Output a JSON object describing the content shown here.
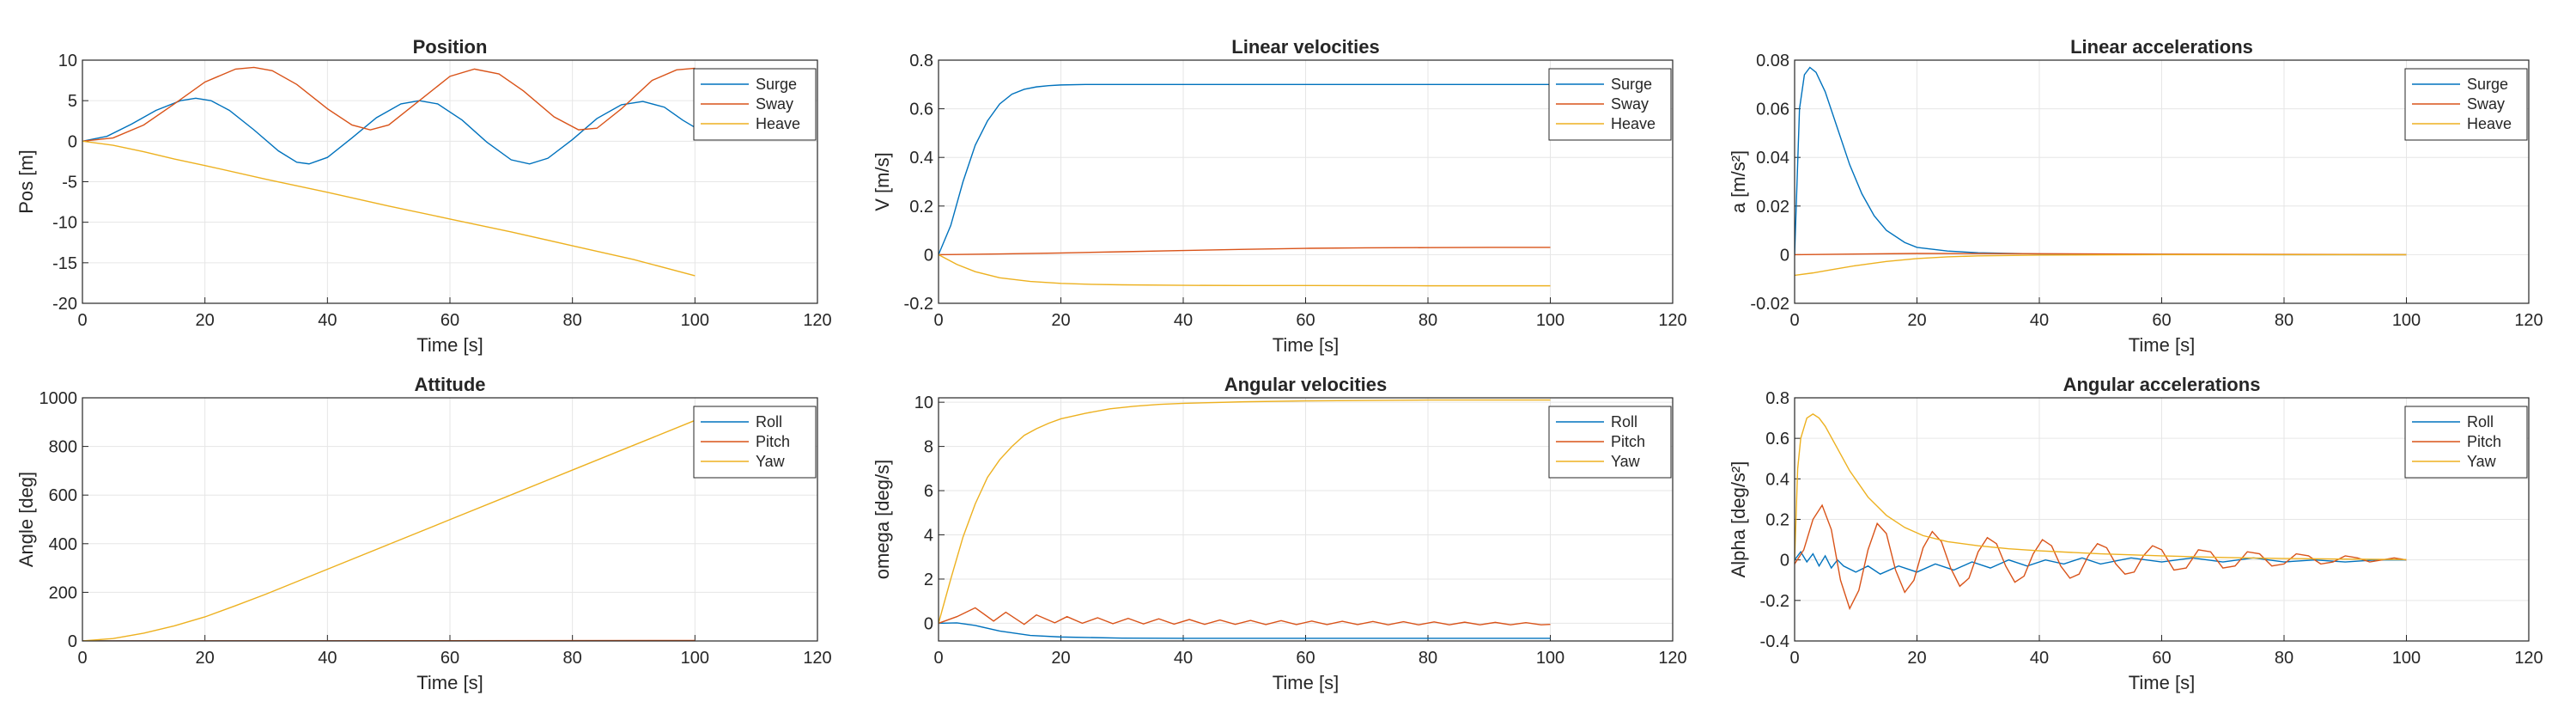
{
  "figure": {
    "grid": true
  },
  "chart_data": [
    {
      "type": "line",
      "title": "Position",
      "xlabel": "Time [s]",
      "ylabel": "Pos [m]",
      "xlim": [
        0,
        120
      ],
      "ylim": [
        -20,
        10
      ],
      "xticks": [
        "0",
        "20",
        "40",
        "60",
        "80",
        "100",
        "120"
      ],
      "yticks": [
        "10",
        "5",
        "0",
        "-5",
        "-10",
        "-15",
        "-20"
      ],
      "legend": "top-right",
      "series": [
        {
          "name": "Surge",
          "color": "#0072BD",
          "x": [
            0,
            4,
            8,
            12,
            16,
            18.5,
            21,
            24,
            28,
            32,
            35,
            37,
            40,
            44,
            48,
            52,
            55,
            58,
            62,
            66,
            70,
            73,
            76,
            80,
            84,
            88,
            91.5,
            95,
            98,
            100
          ],
          "y": [
            0,
            0.6,
            2.1,
            3.8,
            5.0,
            5.3,
            5.0,
            3.8,
            1.4,
            -1.2,
            -2.6,
            -2.8,
            -2.0,
            0.4,
            2.9,
            4.6,
            5.0,
            4.6,
            2.6,
            -0.1,
            -2.3,
            -2.8,
            -2.1,
            0.2,
            2.8,
            4.5,
            4.9,
            4.2,
            2.6,
            1.7
          ]
        },
        {
          "name": "Sway",
          "color": "#D95319",
          "x": [
            0,
            5,
            10,
            15,
            20,
            25,
            28,
            31,
            35,
            40,
            44,
            47,
            50,
            55,
            60,
            64,
            68,
            72,
            77,
            81,
            84,
            88,
            93,
            97,
            100
          ],
          "y": [
            0,
            0.4,
            2.0,
            4.6,
            7.3,
            8.9,
            9.1,
            8.7,
            7.0,
            4.0,
            2.0,
            1.4,
            2.0,
            5.0,
            8.0,
            8.9,
            8.3,
            6.2,
            3.0,
            1.4,
            1.6,
            4.0,
            7.5,
            8.8,
            9.0
          ]
        },
        {
          "name": "Heave",
          "color": "#EDB120",
          "x": [
            0,
            5,
            10,
            15,
            20,
            30,
            40,
            50,
            60,
            70,
            80,
            90,
            100
          ],
          "y": [
            0,
            -0.5,
            -1.3,
            -2.2,
            -3.0,
            -4.7,
            -6.3,
            -8.0,
            -9.6,
            -11.2,
            -12.9,
            -14.6,
            -16.6
          ]
        }
      ]
    },
    {
      "type": "line",
      "title": "Linear velocities",
      "xlabel": "Time [s]",
      "ylabel": "V [m/s]",
      "xlim": [
        0,
        120
      ],
      "ylim": [
        -0.2,
        0.8
      ],
      "xticks": [
        "0",
        "20",
        "40",
        "60",
        "80",
        "100",
        "120"
      ],
      "yticks": [
        "0.8",
        "0.6",
        "0.4",
        "0.2",
        "0",
        "-0.2"
      ],
      "legend": "top-right",
      "series": [
        {
          "name": "Surge",
          "color": "#0072BD",
          "x": [
            0,
            2,
            4,
            6,
            8,
            10,
            12,
            14,
            16,
            18,
            20,
            24,
            28,
            35,
            45,
            60,
            80,
            100
          ],
          "y": [
            0,
            0.12,
            0.3,
            0.45,
            0.55,
            0.62,
            0.66,
            0.68,
            0.69,
            0.695,
            0.698,
            0.7,
            0.7,
            0.7,
            0.7,
            0.7,
            0.7,
            0.7
          ]
        },
        {
          "name": "Sway",
          "color": "#D95319",
          "x": [
            0,
            10,
            20,
            30,
            40,
            50,
            60,
            70,
            80,
            90,
            100
          ],
          "y": [
            0,
            0.003,
            0.007,
            0.012,
            0.017,
            0.022,
            0.026,
            0.028,
            0.029,
            0.03,
            0.03
          ]
        },
        {
          "name": "Heave",
          "color": "#EDB120",
          "x": [
            0,
            3,
            6,
            10,
            15,
            20,
            25,
            30,
            40,
            50,
            60,
            80,
            100
          ],
          "y": [
            0,
            -0.04,
            -0.07,
            -0.095,
            -0.11,
            -0.118,
            -0.122,
            -0.124,
            -0.126,
            -0.127,
            -0.127,
            -0.128,
            -0.128
          ]
        }
      ]
    },
    {
      "type": "line",
      "title": "Linear accelerations",
      "xlabel": "Time [s]",
      "ylabel": "a [m/s²]",
      "xlim": [
        0,
        120
      ],
      "ylim": [
        -0.02,
        0.08
      ],
      "xticks": [
        "0",
        "20",
        "40",
        "60",
        "80",
        "100",
        "120"
      ],
      "yticks": [
        "0.08",
        "0.06",
        "0.04",
        "0.02",
        "0",
        "-0.02"
      ],
      "legend": "top-right",
      "series": [
        {
          "name": "Surge",
          "color": "#0072BD",
          "x": [
            0,
            0.8,
            1.6,
            2.5,
            3.5,
            5,
            7,
            9,
            11,
            13,
            15,
            18,
            20,
            25,
            30,
            40,
            60,
            80,
            100
          ],
          "y": [
            0.0,
            0.06,
            0.074,
            0.077,
            0.075,
            0.067,
            0.052,
            0.037,
            0.025,
            0.016,
            0.01,
            0.005,
            0.003,
            0.0015,
            0.0008,
            0.0003,
            0.0001,
            0,
            0
          ]
        },
        {
          "name": "Sway",
          "color": "#D95319",
          "x": [
            0,
            20,
            40,
            60,
            80,
            100
          ],
          "y": [
            0,
            0.0005,
            0.0004,
            0.0002,
            0.0001,
            0
          ]
        },
        {
          "name": "Heave",
          "color": "#EDB120",
          "x": [
            0,
            3,
            6,
            10,
            15,
            20,
            25,
            30,
            40,
            60,
            80,
            100
          ],
          "y": [
            -0.0085,
            -0.0075,
            -0.0062,
            -0.0045,
            -0.0028,
            -0.0016,
            -0.0009,
            -0.0005,
            -0.0002,
            0,
            0,
            0
          ]
        }
      ]
    },
    {
      "type": "line",
      "title": "Attitude",
      "xlabel": "Time [s]",
      "ylabel": "Angle [deg]",
      "xlim": [
        0,
        120
      ],
      "ylim": [
        0,
        1000
      ],
      "xticks": [
        "0",
        "20",
        "40",
        "60",
        "80",
        "100",
        "120"
      ],
      "yticks": [
        "1000",
        "800",
        "600",
        "400",
        "200",
        "0"
      ],
      "legend": "top-right",
      "series": [
        {
          "name": "Roll",
          "color": "#0072BD",
          "x": [
            0,
            50,
            100
          ],
          "y": [
            0,
            0,
            0
          ]
        },
        {
          "name": "Pitch",
          "color": "#D95319",
          "x": [
            0,
            50,
            100
          ],
          "y": [
            0,
            1,
            2
          ]
        },
        {
          "name": "Yaw",
          "color": "#EDB120",
          "x": [
            0,
            5,
            10,
            15,
            20,
            25,
            30,
            40,
            50,
            60,
            70,
            80,
            90,
            100
          ],
          "y": [
            0,
            10,
            32,
            62,
            99,
            145,
            193,
            295,
            397,
            499,
            601,
            703,
            805,
            907
          ]
        }
      ]
    },
    {
      "type": "line",
      "title": "Angular velocities",
      "xlabel": "Time [s]",
      "ylabel": "omega [deg/s]",
      "xlim": [
        0,
        120
      ],
      "ylim": [
        -0.8,
        10.2
      ],
      "xticks": [
        "0",
        "20",
        "40",
        "60",
        "80",
        "100",
        "120"
      ],
      "yticks": [
        "10",
        "8",
        "6",
        "4",
        "2",
        "0"
      ],
      "legend": "top-right",
      "series": [
        {
          "name": "Roll",
          "color": "#0072BD",
          "x": [
            0,
            3,
            6,
            10,
            15,
            20,
            30,
            40,
            50,
            60,
            80,
            100
          ],
          "y": [
            0,
            0.02,
            -0.1,
            -0.35,
            -0.55,
            -0.62,
            -0.67,
            -0.68,
            -0.68,
            -0.68,
            -0.68,
            -0.68
          ]
        },
        {
          "name": "Pitch",
          "color": "#D95319",
          "x": [
            0,
            3,
            6,
            9,
            11,
            14,
            16,
            19,
            21,
            23.5,
            26,
            28.5,
            31,
            33.5,
            36,
            38.5,
            41,
            43.5,
            46,
            48.5,
            51,
            53.5,
            56,
            58.5,
            61,
            63.5,
            66,
            68.5,
            71,
            73.5,
            76,
            78.5,
            81,
            83.5,
            86,
            88.5,
            91,
            93.5,
            96,
            98.5,
            100
          ],
          "y": [
            0,
            0.3,
            0.7,
            0.1,
            0.5,
            -0.05,
            0.38,
            0.02,
            0.3,
            0.0,
            0.25,
            -0.02,
            0.22,
            -0.03,
            0.2,
            -0.04,
            0.17,
            -0.05,
            0.15,
            -0.05,
            0.13,
            -0.06,
            0.12,
            -0.06,
            0.1,
            -0.06,
            0.09,
            -0.06,
            0.08,
            -0.07,
            0.07,
            -0.07,
            0.06,
            -0.07,
            0.05,
            -0.07,
            0.04,
            -0.07,
            0.03,
            -0.07,
            -0.05
          ]
        },
        {
          "name": "Yaw",
          "color": "#EDB120",
          "x": [
            0,
            2,
            4,
            6,
            8,
            10,
            12,
            14,
            16,
            18,
            20,
            24,
            28,
            32,
            36,
            40,
            50,
            60,
            70,
            80,
            90,
            100
          ],
          "y": [
            0,
            2.0,
            3.9,
            5.4,
            6.6,
            7.4,
            8.0,
            8.5,
            8.8,
            9.05,
            9.25,
            9.5,
            9.7,
            9.82,
            9.9,
            9.95,
            10.02,
            10.06,
            10.08,
            10.1,
            10.1,
            10.1
          ]
        }
      ]
    },
    {
      "type": "line",
      "title": "Angular accelerations",
      "xlabel": "Time [s]",
      "ylabel": "Alpha [deg/s²]",
      "xlim": [
        0,
        120
      ],
      "ylim": [
        -0.4,
        0.8
      ],
      "xticks": [
        "0",
        "20",
        "40",
        "60",
        "80",
        "100",
        "120"
      ],
      "yticks": [
        "0.8",
        "0.6",
        "0.4",
        "0.2",
        "0",
        "-0.2",
        "-0.4"
      ],
      "legend": "top-right",
      "series": [
        {
          "name": "Roll",
          "color": "#0072BD",
          "x": [
            0,
            1,
            2,
            3,
            4,
            5,
            6,
            7,
            8,
            10,
            12,
            14,
            17,
            20,
            23,
            26,
            29,
            32,
            35,
            38,
            41,
            44,
            47,
            50,
            55,
            60,
            65,
            70,
            75,
            80,
            85,
            90,
            95,
            100
          ],
          "y": [
            0,
            0.04,
            -0.01,
            0.03,
            -0.03,
            0.02,
            -0.04,
            0.0,
            -0.03,
            -0.06,
            -0.03,
            -0.07,
            -0.03,
            -0.06,
            -0.02,
            -0.05,
            -0.01,
            -0.04,
            0.0,
            -0.03,
            0.0,
            -0.02,
            0.01,
            -0.02,
            0.01,
            -0.01,
            0.01,
            -0.01,
            0.01,
            -0.01,
            0.0,
            -0.01,
            0.0,
            0.0
          ]
        },
        {
          "name": "Pitch",
          "color": "#D95319",
          "x": [
            0,
            1.5,
            3,
            4.5,
            6,
            7.5,
            9,
            10.5,
            12,
            13.5,
            15,
            16.5,
            18,
            19.5,
            21,
            22.5,
            24,
            25.5,
            27,
            28.5,
            30,
            31.5,
            33,
            34.5,
            36,
            37.5,
            39,
            40.5,
            42,
            43.5,
            45,
            46.5,
            48,
            49.5,
            51,
            52.5,
            54,
            55.5,
            57,
            58.5,
            60,
            62,
            64,
            66,
            68,
            70,
            72,
            74,
            76,
            78,
            80,
            82,
            84,
            86,
            88,
            90,
            92,
            94,
            96,
            98,
            100
          ],
          "y": [
            -0.02,
            0.05,
            0.2,
            0.27,
            0.15,
            -0.1,
            -0.24,
            -0.15,
            0.05,
            0.18,
            0.13,
            -0.05,
            -0.16,
            -0.1,
            0.06,
            0.14,
            0.09,
            -0.04,
            -0.13,
            -0.09,
            0.04,
            0.11,
            0.08,
            -0.03,
            -0.11,
            -0.08,
            0.03,
            0.1,
            0.07,
            -0.03,
            -0.09,
            -0.07,
            0.02,
            0.08,
            0.06,
            -0.02,
            -0.07,
            -0.06,
            0.02,
            0.07,
            0.05,
            -0.05,
            -0.04,
            0.05,
            0.04,
            -0.04,
            -0.03,
            0.04,
            0.03,
            -0.03,
            -0.02,
            0.03,
            0.02,
            -0.02,
            -0.01,
            0.02,
            0.01,
            -0.01,
            0.0,
            0.01,
            0.0
          ]
        },
        {
          "name": "Yaw",
          "color": "#EDB120",
          "x": [
            0,
            0.5,
            1,
            2,
            3,
            4,
            5,
            7,
            9,
            12,
            15,
            18,
            21,
            25,
            30,
            35,
            40,
            50,
            60,
            70,
            80,
            90,
            100
          ],
          "y": [
            0.0,
            0.45,
            0.6,
            0.7,
            0.72,
            0.7,
            0.66,
            0.55,
            0.44,
            0.31,
            0.22,
            0.16,
            0.12,
            0.09,
            0.07,
            0.055,
            0.045,
            0.03,
            0.02,
            0.012,
            0.007,
            0.004,
            0.002
          ]
        }
      ]
    }
  ]
}
